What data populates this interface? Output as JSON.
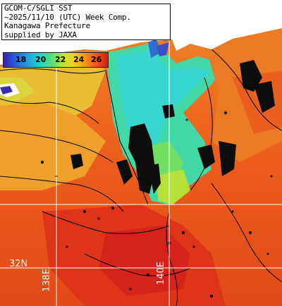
{
  "title": {
    "line1": "GCOM-C/SGLI SST",
    "line2": "~2025/11/10 (UTC) Week Comp.",
    "line3": "Kanagawa Prefecture",
    "line4": "supplied by JAXA"
  },
  "colorbar": {
    "ticks": [
      "18",
      "20",
      "22",
      "24",
      "26"
    ]
  },
  "grid_labels": {
    "lat": "32N",
    "lon1": "138E",
    "lon2": "140E"
  },
  "colors": {
    "land": "#ffffff",
    "coast_sea": "#2f7fd0",
    "cold": "#3fd9c0",
    "mid": "#e6d33a",
    "warm": "#ef6a1e",
    "hot": "#d8281a",
    "contour": "#000000",
    "grid": "#ffffff"
  }
}
